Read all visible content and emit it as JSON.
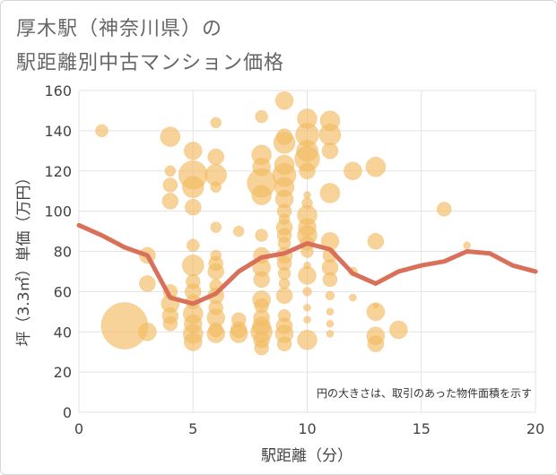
{
  "title_line1": "厚木駅（神奈川県）の",
  "title_line2": "駅距離別中古マンション価格",
  "colors": {
    "bubble": "#f2bb62",
    "bubble_stroke": "#f0b050",
    "line": "#d9705a",
    "grid": "#e3e3e3",
    "plot_bg": "#ffffff"
  },
  "chart_data": {
    "type": "scatter",
    "xlabel": "駅距離（分）",
    "ylabel": "坪（3.3㎡）単価（万円）",
    "xlim": [
      0,
      20
    ],
    "ylim": [
      0,
      160
    ],
    "xticks": [
      0,
      5,
      10,
      15,
      20
    ],
    "yticks": [
      0,
      20,
      40,
      60,
      80,
      100,
      120,
      140,
      160
    ],
    "annotation": "円の大きさは、取引のあった物件面積を示す",
    "bubbles": [
      {
        "x": 1,
        "y": 140,
        "s": 7
      },
      {
        "x": 2,
        "y": 43,
        "s": 26
      },
      {
        "x": 3,
        "y": 40,
        "s": 10
      },
      {
        "x": 3,
        "y": 64,
        "s": 9
      },
      {
        "x": 3,
        "y": 78,
        "s": 9
      },
      {
        "x": 4,
        "y": 137,
        "s": 11
      },
      {
        "x": 4,
        "y": 120,
        "s": 6
      },
      {
        "x": 4,
        "y": 113,
        "s": 8
      },
      {
        "x": 4,
        "y": 105,
        "s": 9
      },
      {
        "x": 4,
        "y": 60,
        "s": 8
      },
      {
        "x": 4,
        "y": 54,
        "s": 10
      },
      {
        "x": 4,
        "y": 48,
        "s": 9
      },
      {
        "x": 4,
        "y": 44,
        "s": 8
      },
      {
        "x": 5,
        "y": 130,
        "s": 10
      },
      {
        "x": 5,
        "y": 118,
        "s": 16
      },
      {
        "x": 5,
        "y": 112,
        "s": 12
      },
      {
        "x": 5,
        "y": 102,
        "s": 9
      },
      {
        "x": 5,
        "y": 83,
        "s": 7
      },
      {
        "x": 5,
        "y": 73,
        "s": 12
      },
      {
        "x": 5,
        "y": 65,
        "s": 8
      },
      {
        "x": 5,
        "y": 60,
        "s": 9
      },
      {
        "x": 5,
        "y": 55,
        "s": 8
      },
      {
        "x": 5,
        "y": 49,
        "s": 11
      },
      {
        "x": 5,
        "y": 44,
        "s": 10
      },
      {
        "x": 5,
        "y": 39,
        "s": 11
      },
      {
        "x": 5,
        "y": 35,
        "s": 10
      },
      {
        "x": 6,
        "y": 144,
        "s": 6
      },
      {
        "x": 6,
        "y": 127,
        "s": 9
      },
      {
        "x": 6,
        "y": 118,
        "s": 12
      },
      {
        "x": 6,
        "y": 112,
        "s": 6
      },
      {
        "x": 6,
        "y": 92,
        "s": 6
      },
      {
        "x": 6,
        "y": 78,
        "s": 6
      },
      {
        "x": 6,
        "y": 74,
        "s": 8
      },
      {
        "x": 6,
        "y": 70,
        "s": 9
      },
      {
        "x": 6,
        "y": 63,
        "s": 7
      },
      {
        "x": 6,
        "y": 58,
        "s": 9
      },
      {
        "x": 6,
        "y": 52,
        "s": 8
      },
      {
        "x": 6,
        "y": 47,
        "s": 10
      },
      {
        "x": 6,
        "y": 41,
        "s": 8
      },
      {
        "x": 6,
        "y": 39,
        "s": 10
      },
      {
        "x": 7,
        "y": 90,
        "s": 6
      },
      {
        "x": 7,
        "y": 46,
        "s": 8
      },
      {
        "x": 7,
        "y": 41,
        "s": 9
      },
      {
        "x": 7,
        "y": 39,
        "s": 10
      },
      {
        "x": 8,
        "y": 147,
        "s": 7
      },
      {
        "x": 8,
        "y": 128,
        "s": 11
      },
      {
        "x": 8,
        "y": 122,
        "s": 10
      },
      {
        "x": 8,
        "y": 114,
        "s": 16
      },
      {
        "x": 8,
        "y": 108,
        "s": 11
      },
      {
        "x": 8,
        "y": 88,
        "s": 7
      },
      {
        "x": 8,
        "y": 78,
        "s": 9
      },
      {
        "x": 8,
        "y": 72,
        "s": 10
      },
      {
        "x": 8,
        "y": 66,
        "s": 9
      },
      {
        "x": 8,
        "y": 56,
        "s": 10
      },
      {
        "x": 8,
        "y": 53,
        "s": 8
      },
      {
        "x": 8,
        "y": 47,
        "s": 9
      },
      {
        "x": 8,
        "y": 43,
        "s": 10
      },
      {
        "x": 8,
        "y": 40,
        "s": 12
      },
      {
        "x": 8,
        "y": 36,
        "s": 9
      },
      {
        "x": 8,
        "y": 32,
        "s": 8
      },
      {
        "x": 9,
        "y": 155,
        "s": 10
      },
      {
        "x": 9,
        "y": 137,
        "s": 9
      },
      {
        "x": 9,
        "y": 134,
        "s": 12
      },
      {
        "x": 9,
        "y": 123,
        "s": 11
      },
      {
        "x": 9,
        "y": 118,
        "s": 13
      },
      {
        "x": 9,
        "y": 112,
        "s": 11
      },
      {
        "x": 9,
        "y": 106,
        "s": 10
      },
      {
        "x": 9,
        "y": 100,
        "s": 8
      },
      {
        "x": 9,
        "y": 96,
        "s": 6
      },
      {
        "x": 9,
        "y": 92,
        "s": 9
      },
      {
        "x": 9,
        "y": 88,
        "s": 8
      },
      {
        "x": 9,
        "y": 84,
        "s": 7
      },
      {
        "x": 9,
        "y": 78,
        "s": 9
      },
      {
        "x": 9,
        "y": 74,
        "s": 8
      },
      {
        "x": 9,
        "y": 69,
        "s": 7
      },
      {
        "x": 9,
        "y": 64,
        "s": 6
      },
      {
        "x": 9,
        "y": 58,
        "s": 9
      },
      {
        "x": 9,
        "y": 48,
        "s": 7
      },
      {
        "x": 9,
        "y": 43,
        "s": 9
      },
      {
        "x": 9,
        "y": 39,
        "s": 10
      },
      {
        "x": 9,
        "y": 34,
        "s": 8
      },
      {
        "x": 10,
        "y": 146,
        "s": 11
      },
      {
        "x": 10,
        "y": 138,
        "s": 13
      },
      {
        "x": 10,
        "y": 130,
        "s": 12
      },
      {
        "x": 10,
        "y": 126,
        "s": 14
      },
      {
        "x": 10,
        "y": 120,
        "s": 9
      },
      {
        "x": 10,
        "y": 108,
        "s": 4
      },
      {
        "x": 10,
        "y": 104,
        "s": 6
      },
      {
        "x": 10,
        "y": 98,
        "s": 11
      },
      {
        "x": 10,
        "y": 92,
        "s": 10
      },
      {
        "x": 10,
        "y": 88,
        "s": 11
      },
      {
        "x": 10,
        "y": 84,
        "s": 8
      },
      {
        "x": 10,
        "y": 80,
        "s": 7
      },
      {
        "x": 10,
        "y": 73,
        "s": 4
      },
      {
        "x": 10,
        "y": 68,
        "s": 10
      },
      {
        "x": 10,
        "y": 60,
        "s": 5
      },
      {
        "x": 10,
        "y": 52,
        "s": 4
      },
      {
        "x": 10,
        "y": 46,
        "s": 4
      },
      {
        "x": 10,
        "y": 36,
        "s": 11
      },
      {
        "x": 11,
        "y": 145,
        "s": 11
      },
      {
        "x": 11,
        "y": 138,
        "s": 12
      },
      {
        "x": 11,
        "y": 130,
        "s": 9
      },
      {
        "x": 11,
        "y": 109,
        "s": 11
      },
      {
        "x": 11,
        "y": 85,
        "s": 10
      },
      {
        "x": 11,
        "y": 78,
        "s": 8
      },
      {
        "x": 11,
        "y": 72,
        "s": 9
      },
      {
        "x": 11,
        "y": 66,
        "s": 8
      },
      {
        "x": 11,
        "y": 58,
        "s": 5
      },
      {
        "x": 11,
        "y": 50,
        "s": 4
      },
      {
        "x": 11,
        "y": 44,
        "s": 4
      },
      {
        "x": 11,
        "y": 39,
        "s": 4
      },
      {
        "x": 12,
        "y": 120,
        "s": 10
      },
      {
        "x": 12,
        "y": 70,
        "s": 5
      },
      {
        "x": 12,
        "y": 57,
        "s": 4
      },
      {
        "x": 13,
        "y": 122,
        "s": 11
      },
      {
        "x": 13,
        "y": 85,
        "s": 9
      },
      {
        "x": 13,
        "y": 53,
        "s": 3
      },
      {
        "x": 13,
        "y": 50,
        "s": 10
      },
      {
        "x": 13,
        "y": 38,
        "s": 10
      },
      {
        "x": 13,
        "y": 34,
        "s": 9
      },
      {
        "x": 14,
        "y": 41,
        "s": 10
      },
      {
        "x": 16,
        "y": 101,
        "s": 8
      },
      {
        "x": 17,
        "y": 83,
        "s": 4
      }
    ],
    "line": {
      "x": [
        0,
        1,
        2,
        3,
        4,
        5,
        6,
        7,
        8,
        9,
        10,
        11,
        12,
        13,
        14,
        15,
        16,
        17,
        18,
        19,
        20
      ],
      "y": [
        93,
        88,
        82,
        78,
        57,
        54,
        59,
        70,
        77,
        79,
        84,
        81,
        69,
        64,
        70,
        73,
        75,
        80,
        79,
        73,
        70
      ]
    }
  }
}
